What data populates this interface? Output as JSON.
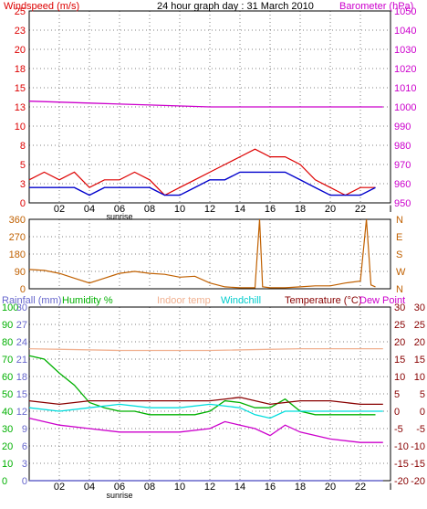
{
  "page": {
    "title": "24 hour graph day : 31 March 2010"
  },
  "colors": {
    "wind": "#dd0000",
    "gust": "#0000cc",
    "baro": "#cc00cc",
    "dir": "#c06000",
    "rain": "#6666cc",
    "hum": "#00b000",
    "indoor": "#f0b090",
    "chill": "#00dddd",
    "temp": "#880000",
    "dew": "#cc00cc",
    "grid": "#000000"
  },
  "chart_data": [
    {
      "type": "line",
      "labels": {
        "left": "Windspeed (m/s)",
        "right": "Barometer (hPa)"
      },
      "x_ticks": [
        "02",
        "04",
        "06",
        "08",
        "10",
        "12",
        "14",
        "16",
        "18",
        "20",
        "22",
        "I"
      ],
      "sunrise_label": "sunrise",
      "y_left_ticks": [
        "0",
        "3",
        "5",
        "8",
        "10",
        "13",
        "15",
        "18",
        "20",
        "23",
        "25"
      ],
      "y_left_range": [
        0,
        25
      ],
      "y_right_ticks": [
        "950",
        "960",
        "970",
        "980",
        "990",
        "1000",
        "1010",
        "1020",
        "1030",
        "1040",
        "1050"
      ],
      "y_right_range": [
        950,
        1050
      ],
      "series": [
        {
          "key": "gust",
          "hours": [
            0,
            1,
            2,
            3,
            4,
            5,
            6,
            7,
            8,
            9,
            10,
            11,
            12,
            13,
            14,
            15,
            16,
            17,
            18,
            19,
            20,
            21,
            22,
            23
          ],
          "values": [
            3,
            4,
            3,
            4,
            2,
            3,
            3,
            4,
            3,
            1,
            2,
            3,
            4,
            5,
            6,
            7,
            6,
            6,
            5,
            3,
            2,
            1,
            2,
            2
          ]
        },
        {
          "key": "wind",
          "hours": [
            0,
            1,
            2,
            3,
            4,
            5,
            6,
            7,
            8,
            9,
            10,
            11,
            12,
            13,
            14,
            15,
            16,
            17,
            18,
            19,
            20,
            21,
            22,
            23
          ],
          "values": [
            2,
            2,
            2,
            2,
            1,
            2,
            2,
            2,
            2,
            1,
            1,
            2,
            3,
            3,
            4,
            4,
            4,
            4,
            3,
            2,
            1,
            1,
            1,
            2
          ]
        },
        {
          "key": "baro",
          "hours": [
            0,
            4,
            8,
            12,
            16,
            20,
            23.5
          ],
          "values": [
            1003,
            1002,
            1001,
            1000,
            1000,
            1000,
            1000
          ]
        }
      ]
    },
    {
      "type": "line",
      "y_left_ticks": [
        "0",
        "90",
        "180",
        "270",
        "360"
      ],
      "y_left_range": [
        0,
        360
      ],
      "y_right_ticks": [
        "N",
        "W",
        "S",
        "E",
        "N"
      ],
      "series": [
        {
          "key": "dir",
          "hours": [
            0,
            1,
            2,
            3,
            4,
            5,
            6,
            7,
            8,
            9,
            10,
            11,
            12,
            13,
            14,
            15,
            15.3,
            15.5,
            16,
            17,
            18,
            19,
            20,
            21,
            22,
            22.4,
            22.7,
            23
          ],
          "values": [
            100,
            95,
            80,
            55,
            30,
            55,
            80,
            90,
            80,
            75,
            60,
            65,
            30,
            10,
            5,
            5,
            360,
            10,
            5,
            5,
            10,
            15,
            15,
            30,
            40,
            360,
            20,
            10
          ]
        }
      ]
    },
    {
      "type": "line",
      "labels": {
        "rain": "Rainfall (mm)",
        "hum": "Humidity %",
        "indoor": "Indoor temp",
        "chill": "Windchill",
        "temp": "Temperature (°C)",
        "dew": "Dew Point"
      },
      "x_ticks": [
        "02",
        "04",
        "06",
        "08",
        "10",
        "12",
        "14",
        "16",
        "18",
        "20",
        "22",
        "I"
      ],
      "sunrise_label": "sunrise",
      "y_rain_ticks": [
        "0",
        "3",
        "6",
        "9",
        "12",
        "15",
        "18",
        "21",
        "24",
        "27",
        "30"
      ],
      "y_rain_range": [
        0,
        30
      ],
      "y_hum_ticks": [
        "0",
        "10",
        "20",
        "30",
        "40",
        "50",
        "60",
        "70",
        "80",
        "90",
        "100"
      ],
      "y_temp_ticks": [
        "-20",
        "-15",
        "-10",
        "-5",
        "0",
        "5",
        "10",
        "15",
        "20",
        "25",
        "30"
      ],
      "y_temp_range": [
        -20,
        30
      ],
      "series": [
        {
          "key": "indoor",
          "hours": [
            0,
            6,
            12,
            18,
            23.5
          ],
          "values": [
            18,
            17.5,
            17.5,
            18,
            18
          ]
        },
        {
          "key": "hum",
          "hours": [
            0,
            1,
            2,
            3,
            4,
            5,
            6,
            7,
            8,
            9,
            10,
            11,
            12,
            13,
            14,
            15,
            16,
            17,
            18,
            19,
            20,
            21,
            22,
            23
          ],
          "values": [
            72,
            70,
            62,
            55,
            45,
            42,
            40,
            40,
            38,
            38,
            38,
            38,
            40,
            46,
            45,
            42,
            42,
            47,
            40,
            38,
            38,
            38,
            38,
            38
          ]
        },
        {
          "key": "temp",
          "hours": [
            0,
            2,
            4,
            6,
            8,
            10,
            12,
            14,
            16,
            18,
            20,
            22,
            23.5
          ],
          "values": [
            3,
            2,
            3,
            3,
            3,
            3,
            3,
            4,
            2,
            3,
            3,
            2,
            2
          ]
        },
        {
          "key": "chill",
          "hours": [
            0,
            2,
            4,
            6,
            8,
            10,
            12,
            14,
            15,
            16,
            17,
            18,
            20,
            22,
            23.5
          ],
          "values": [
            1,
            0,
            1,
            2,
            1,
            1,
            2,
            1,
            -1,
            -2,
            0,
            0,
            0,
            0,
            0
          ]
        },
        {
          "key": "dew",
          "hours": [
            0,
            2,
            4,
            6,
            8,
            10,
            12,
            13,
            14,
            15,
            16,
            17,
            18,
            20,
            22,
            23.5
          ],
          "values": [
            -2,
            -4,
            -5,
            -6,
            -6,
            -6,
            -5,
            -3,
            -4,
            -5,
            -7,
            -4,
            -6,
            -8,
            -9,
            -9
          ]
        },
        {
          "key": "rain",
          "hours": [
            0,
            23.5
          ],
          "values": [
            0,
            0
          ]
        }
      ]
    }
  ]
}
